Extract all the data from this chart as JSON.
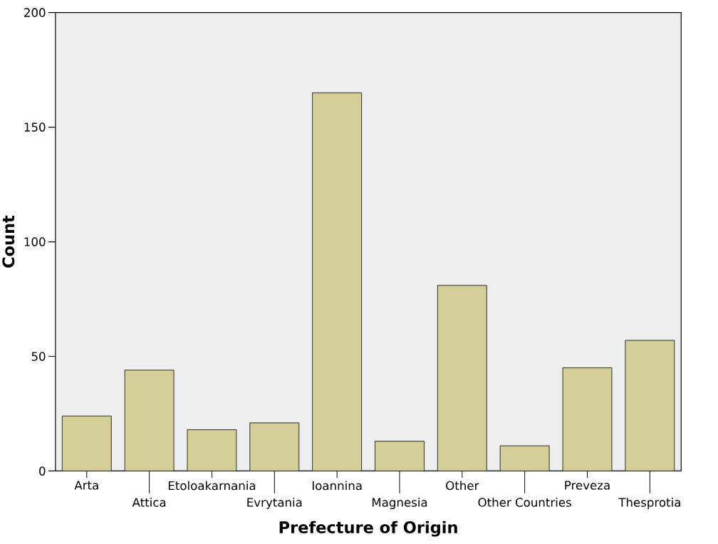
{
  "chart_data": {
    "type": "bar",
    "xlabel": "Prefecture of Origin",
    "ylabel": "Count",
    "categories": [
      "Arta",
      "Attica",
      "Etoloakarnania",
      "Evrytania",
      "Ioannina",
      "Magnesia",
      "Other",
      "Other Countries",
      "Preveza",
      "Thesprotia"
    ],
    "values": [
      24,
      44,
      18,
      21,
      165,
      13,
      81,
      11,
      45,
      57
    ],
    "color": "#d3ce97",
    "ylim": [
      0,
      200
    ],
    "yticks": [
      0,
      50,
      100,
      150,
      200
    ],
    "grid": false
  }
}
